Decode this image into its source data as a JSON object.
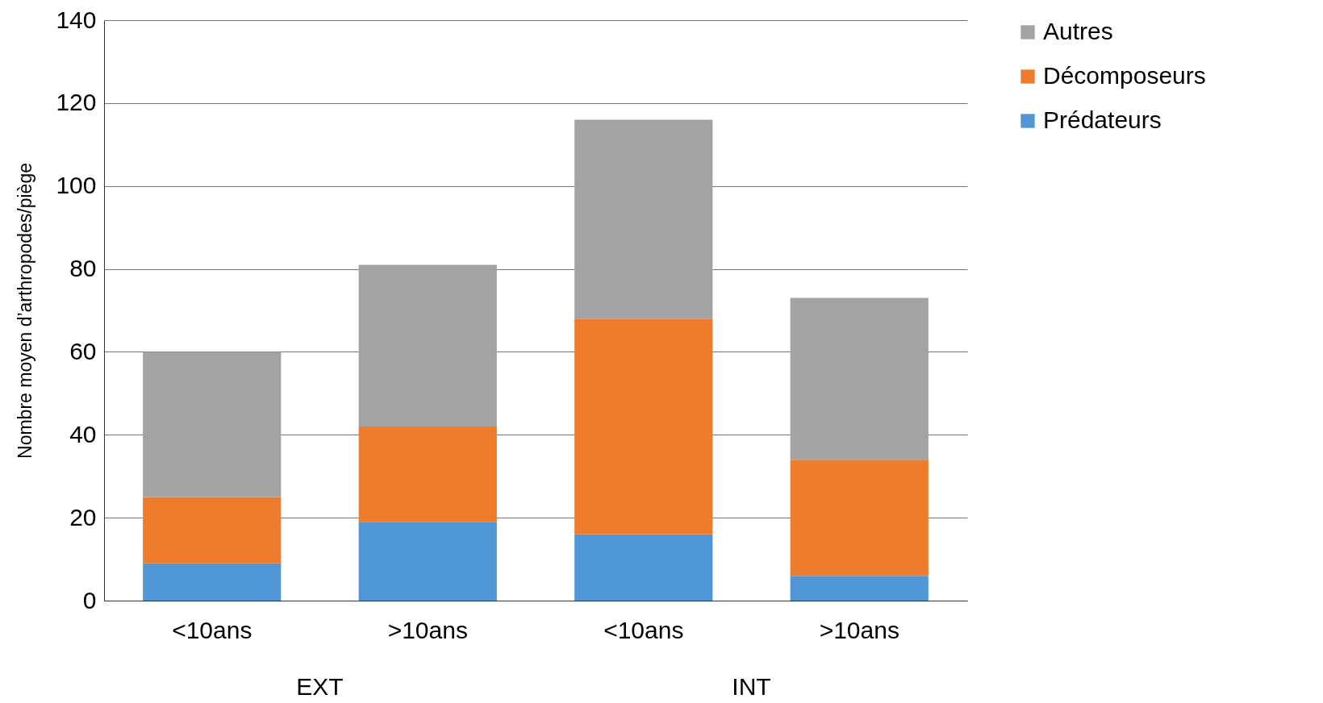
{
  "chart_data": {
    "type": "bar",
    "stacked": true,
    "ylabel": "Nombre moyen d’arthropodes/piège",
    "categories": [
      "<10ans",
      ">10ans",
      "<10ans",
      ">10ans"
    ],
    "annotations": [
      "EXT",
      "INT"
    ],
    "series": [
      {
        "name": "Prédateurs",
        "color": "#4f97d6",
        "values": [
          9,
          19,
          16,
          6
        ]
      },
      {
        "name": "Décomposeurs",
        "color": "#ef7b2c",
        "values": [
          16,
          23,
          52,
          28
        ]
      },
      {
        "name": "Autres",
        "color": "#a3a3a3",
        "values": [
          35,
          39,
          48,
          39
        ]
      }
    ],
    "ylim": [
      0,
      140
    ],
    "yticks": [
      0,
      20,
      40,
      60,
      80,
      100,
      120,
      140
    ],
    "grid": "y",
    "legend": "right"
  }
}
